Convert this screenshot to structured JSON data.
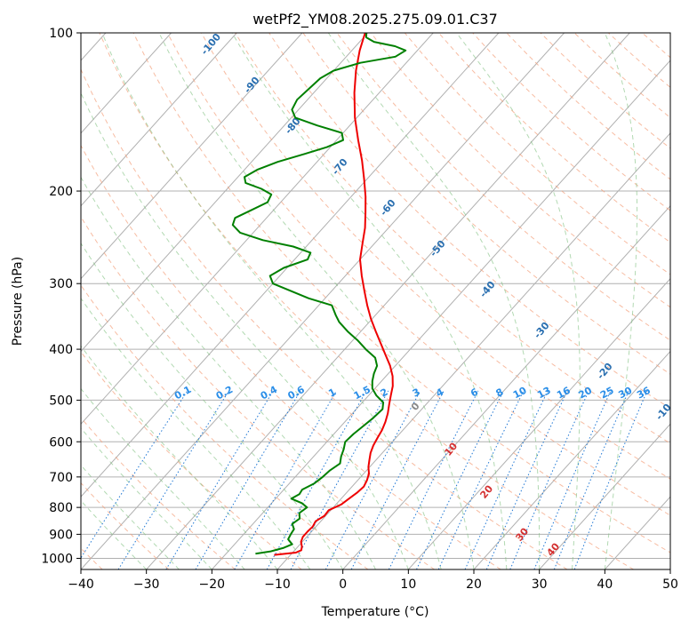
{
  "chart_data": {
    "type": "line",
    "subtype": "skew-t log-p diagram",
    "title": "wetPf2_YM08.2025.275.09.01.C37",
    "xlabel": "Temperature (°C)",
    "ylabel": "Pressure (hPa)",
    "xlim": [
      -40,
      50
    ],
    "ylim": [
      1050,
      100
    ],
    "yscale": "log",
    "x_ticks": [
      "−40",
      "−30",
      "−20",
      "−10",
      "0",
      "10",
      "20",
      "30",
      "40",
      "50"
    ],
    "x_tick_values": [
      -40,
      -30,
      -20,
      -10,
      0,
      10,
      20,
      30,
      40,
      50
    ],
    "y_ticks": [
      "1000",
      "900",
      "800",
      "700",
      "600",
      "500",
      "400",
      "300",
      "200",
      "100"
    ],
    "y_tick_values": [
      1000,
      900,
      800,
      700,
      600,
      500,
      400,
      300,
      200,
      100
    ],
    "grid": true,
    "dry_adiabat_labels": [
      "-100",
      "-90",
      "-80",
      "-70",
      "-60",
      "-50",
      "-40",
      "-30",
      "-20",
      "-10",
      "0",
      "10",
      "20",
      "30",
      "40"
    ],
    "mixing_ratio_labels": [
      "0.1",
      "0.2",
      "0.4",
      "0.6",
      "1",
      "1.5",
      "2",
      "3",
      "4",
      "6",
      "8",
      "10",
      "13",
      "16",
      "20",
      "25",
      "30",
      "36"
    ],
    "series": [
      {
        "role": "temperature",
        "color": "#ee0000",
        "points": [
          [
            985,
            -12.5
          ],
          [
            975,
            -9.5
          ],
          [
            965,
            -9.0
          ],
          [
            950,
            -9.4
          ],
          [
            930,
            -10.2
          ],
          [
            910,
            -10.6
          ],
          [
            890,
            -10.6
          ],
          [
            870,
            -10.5
          ],
          [
            850,
            -10.8
          ],
          [
            830,
            -10.2
          ],
          [
            810,
            -10.3
          ],
          [
            790,
            -9.2
          ],
          [
            770,
            -8.8
          ],
          [
            750,
            -8.4
          ],
          [
            730,
            -8.2
          ],
          [
            710,
            -8.6
          ],
          [
            690,
            -9.2
          ],
          [
            670,
            -10.2
          ],
          [
            650,
            -11.0
          ],
          [
            630,
            -11.8
          ],
          [
            610,
            -12.4
          ],
          [
            590,
            -12.8
          ],
          [
            570,
            -13.2
          ],
          [
            550,
            -13.8
          ],
          [
            530,
            -14.6
          ],
          [
            510,
            -15.6
          ],
          [
            490,
            -16.6
          ],
          [
            470,
            -17.6
          ],
          [
            450,
            -19.0
          ],
          [
            430,
            -20.8
          ],
          [
            410,
            -23.0
          ],
          [
            390,
            -25.3
          ],
          [
            370,
            -27.7
          ],
          [
            350,
            -30.2
          ],
          [
            330,
            -32.6
          ],
          [
            310,
            -35.0
          ],
          [
            290,
            -37.5
          ],
          [
            270,
            -40.0
          ],
          [
            250,
            -42.0
          ],
          [
            235,
            -43.6
          ],
          [
            220,
            -45.6
          ],
          [
            205,
            -47.8
          ],
          [
            190,
            -50.4
          ],
          [
            175,
            -53.3
          ],
          [
            160,
            -56.7
          ],
          [
            145,
            -60.3
          ],
          [
            130,
            -63.8
          ],
          [
            118,
            -66.6
          ],
          [
            108,
            -68.8
          ],
          [
            100,
            -70.4
          ]
        ]
      },
      {
        "role": "dewpoint",
        "color": "#008000",
        "points": [
          [
            980,
            -15.5
          ],
          [
            970,
            -13.5
          ],
          [
            955,
            -12.0
          ],
          [
            940,
            -11.2
          ],
          [
            920,
            -12.5
          ],
          [
            900,
            -12.8
          ],
          [
            880,
            -13.0
          ],
          [
            860,
            -14.0
          ],
          [
            840,
            -13.6
          ],
          [
            820,
            -14.4
          ],
          [
            800,
            -14.0
          ],
          [
            785,
            -15.4
          ],
          [
            770,
            -17.6
          ],
          [
            755,
            -17.0
          ],
          [
            740,
            -17.2
          ],
          [
            720,
            -16.2
          ],
          [
            700,
            -15.8
          ],
          [
            680,
            -15.6
          ],
          [
            660,
            -15.0
          ],
          [
            640,
            -15.8
          ],
          [
            620,
            -16.4
          ],
          [
            600,
            -17.2
          ],
          [
            580,
            -17.0
          ],
          [
            560,
            -16.6
          ],
          [
            540,
            -16.2
          ],
          [
            520,
            -16.0
          ],
          [
            505,
            -16.8
          ],
          [
            490,
            -18.8
          ],
          [
            475,
            -20.4
          ],
          [
            460,
            -21.4
          ],
          [
            445,
            -22.2
          ],
          [
            430,
            -22.8
          ],
          [
            415,
            -24.2
          ],
          [
            400,
            -26.8
          ],
          [
            385,
            -29.2
          ],
          [
            370,
            -32.0
          ],
          [
            355,
            -34.6
          ],
          [
            345,
            -36.0
          ],
          [
            330,
            -38.0
          ],
          [
            320,
            -42.5
          ],
          [
            300,
            -50.0
          ],
          [
            290,
            -51.5
          ],
          [
            280,
            -50.5
          ],
          [
            270,
            -48.0
          ],
          [
            262,
            -48.5
          ],
          [
            255,
            -52.0
          ],
          [
            248,
            -57.5
          ],
          [
            240,
            -62.0
          ],
          [
            232,
            -64.2
          ],
          [
            225,
            -64.8
          ],
          [
            218,
            -63.5
          ],
          [
            210,
            -62.0
          ],
          [
            203,
            -62.5
          ],
          [
            198,
            -64.8
          ],
          [
            193,
            -68.0
          ],
          [
            188,
            -69.0
          ],
          [
            182,
            -68.0
          ],
          [
            176,
            -66.0
          ],
          [
            170,
            -63.0
          ],
          [
            165,
            -60.5
          ],
          [
            160,
            -59.0
          ],
          [
            155,
            -60.2
          ],
          [
            150,
            -65.0
          ],
          [
            145,
            -69.4
          ],
          [
            140,
            -71.0
          ],
          [
            134,
            -71.6
          ],
          [
            128,
            -71.3
          ],
          [
            122,
            -71.0
          ],
          [
            118,
            -70.0
          ],
          [
            114,
            -67.0
          ],
          [
            111,
            -62.5
          ],
          [
            108,
            -61.8
          ],
          [
            106,
            -64.0
          ],
          [
            104,
            -67.8
          ],
          [
            102,
            -69.6
          ],
          [
            100,
            -70.2
          ]
        ]
      }
    ]
  }
}
